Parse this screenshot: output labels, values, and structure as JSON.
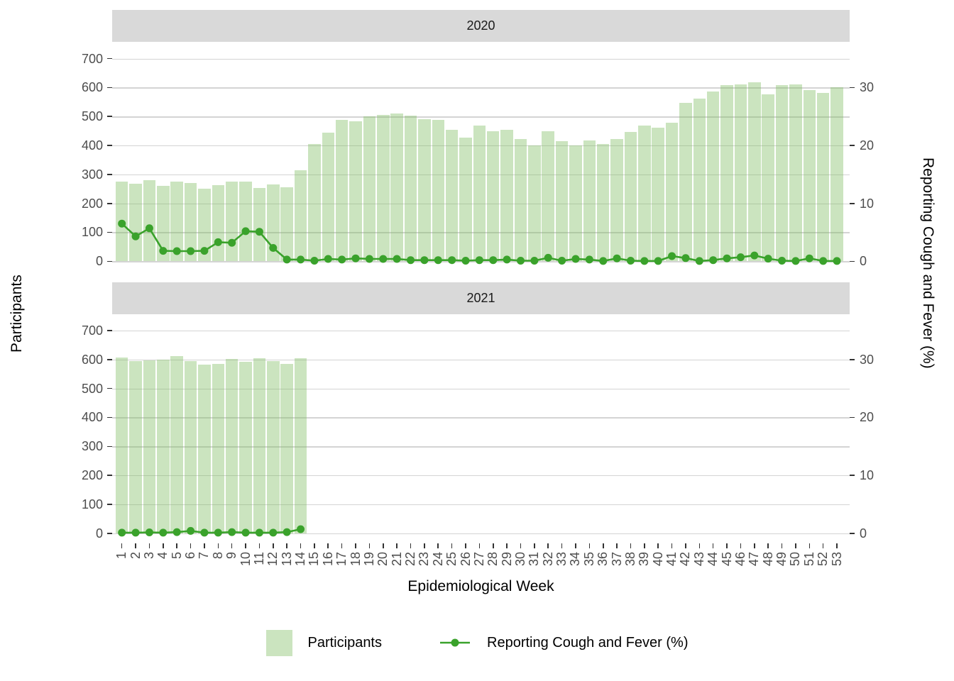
{
  "figure": {
    "x_axis_title": "Epidemiological Week",
    "y_axis_title_left": "Participants",
    "y_axis_title_right": "Reporting Cough and Fever (%)"
  },
  "legend": {
    "participants_label": "Participants",
    "line_label": "Reporting Cough and Fever (%)"
  },
  "colors": {
    "bar_fill": "rgba(125,188,95,0.40)",
    "line": "#3aa22b",
    "strip_bg": "#d9d9d9",
    "gridline": "#d4d4d4",
    "axis_text": "#4d4d4d",
    "axis_title": "#000000"
  },
  "axes": {
    "left_ticks": [
      0,
      100,
      200,
      300,
      400,
      500,
      600,
      700
    ],
    "right_ticks": [
      0,
      10,
      20,
      30
    ],
    "left_lim": [
      0,
      700
    ],
    "right_lim": [
      0,
      35
    ],
    "x_ticks": [
      1,
      2,
      3,
      4,
      5,
      6,
      7,
      8,
      9,
      10,
      11,
      12,
      13,
      14,
      15,
      16,
      17,
      18,
      19,
      20,
      21,
      22,
      23,
      24,
      25,
      26,
      27,
      28,
      29,
      30,
      31,
      32,
      33,
      34,
      35,
      36,
      37,
      38,
      39,
      40,
      41,
      42,
      43,
      44,
      45,
      46,
      47,
      48,
      49,
      50,
      51,
      52,
      53
    ]
  },
  "chart_data": [
    {
      "type": "bar",
      "facet": "2020",
      "x": [
        1,
        2,
        3,
        4,
        5,
        6,
        7,
        8,
        9,
        10,
        11,
        12,
        13,
        14,
        15,
        16,
        17,
        18,
        19,
        20,
        21,
        22,
        23,
        24,
        25,
        26,
        27,
        28,
        29,
        30,
        31,
        32,
        33,
        34,
        35,
        36,
        37,
        38,
        39,
        40,
        41,
        42,
        43,
        44,
        45,
        46,
        47,
        48,
        49,
        50,
        51,
        52,
        53
      ],
      "series": [
        {
          "name": "Participants",
          "axis": "left",
          "type": "bar",
          "values": [
            275,
            268,
            281,
            260,
            274,
            270,
            251,
            263,
            276,
            275,
            252,
            265,
            256,
            315,
            405,
            445,
            488,
            483,
            500,
            506,
            511,
            503,
            490,
            488,
            455,
            427,
            468,
            450,
            455,
            421,
            399,
            450,
            414,
            399,
            418,
            404,
            423,
            447,
            469,
            462,
            479,
            547,
            561,
            587,
            608,
            610,
            617,
            576,
            609,
            610,
            591,
            582,
            601
          ]
        },
        {
          "name": "Reporting Cough and Fever (%)",
          "axis": "right",
          "type": "line",
          "values": [
            6.5,
            4.3,
            5.7,
            1.8,
            1.75,
            1.75,
            1.8,
            3.3,
            3.2,
            5.2,
            5.1,
            2.3,
            0.3,
            0.3,
            0.1,
            0.4,
            0.3,
            0.5,
            0.4,
            0.4,
            0.4,
            0.2,
            0.2,
            0.2,
            0.2,
            0.1,
            0.2,
            0.2,
            0.3,
            0.1,
            0.1,
            0.6,
            0.1,
            0.4,
            0.3,
            0.05,
            0.5,
            0.1,
            0.05,
            0.05,
            0.9,
            0.55,
            0.05,
            0.2,
            0.5,
            0.7,
            1.0,
            0.45,
            0.1,
            0.05,
            0.5,
            0.05,
            0.05
          ]
        }
      ]
    },
    {
      "type": "bar",
      "facet": "2021",
      "x": [
        1,
        2,
        3,
        4,
        5,
        6,
        7,
        8,
        9,
        10,
        11,
        12,
        13,
        14
      ],
      "series": [
        {
          "name": "Participants",
          "axis": "left",
          "type": "bar",
          "values": [
            606,
            594,
            596,
            600,
            613,
            595,
            583,
            586,
            601,
            592,
            605,
            594,
            585,
            605
          ]
        },
        {
          "name": "Reporting Cough and Fever (%)",
          "axis": "right",
          "type": "line",
          "values": [
            0.1,
            0.1,
            0.15,
            0.1,
            0.2,
            0.4,
            0.1,
            0.1,
            0.2,
            0.1,
            0.1,
            0.1,
            0.2,
            0.7
          ]
        }
      ]
    }
  ]
}
